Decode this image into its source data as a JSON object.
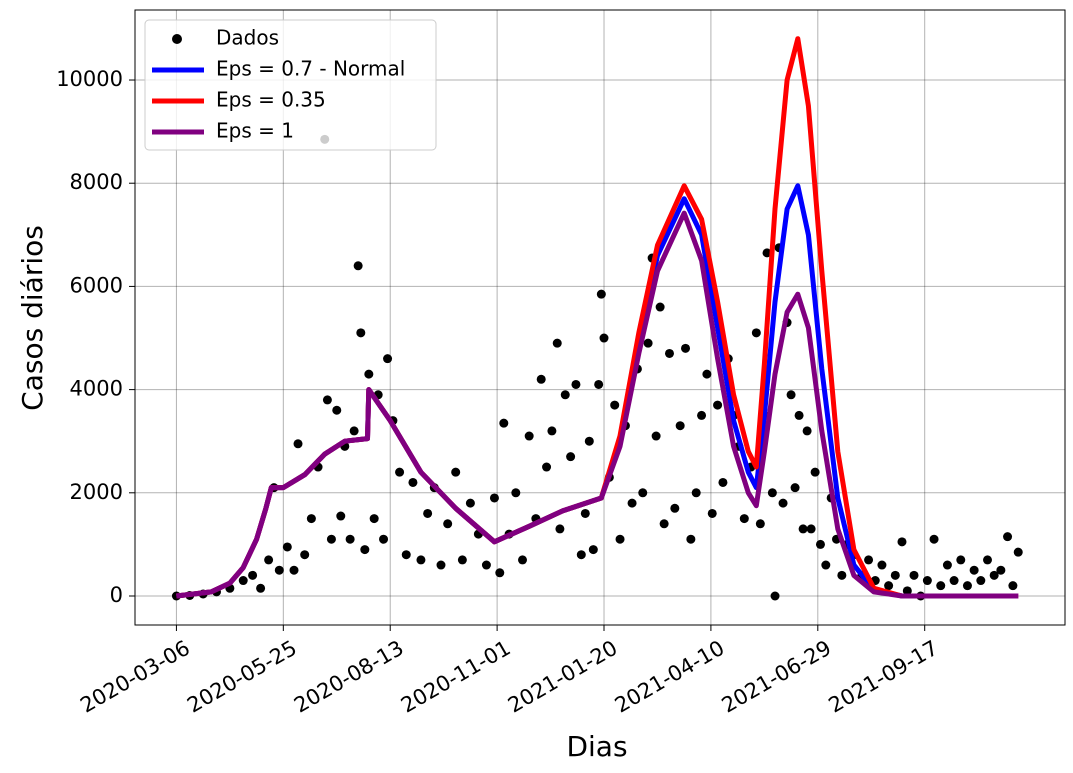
{
  "chart_data": {
    "type": "line",
    "xlabel": "Dias",
    "ylabel": "Casos diários",
    "xlim": [
      "2020-02-04",
      "2021-12-31"
    ],
    "xticks": [
      "2020-03-06",
      "2020-05-25",
      "2020-08-13",
      "2020-11-01",
      "2021-01-20",
      "2021-04-10",
      "2021-06-29",
      "2021-09-17"
    ],
    "ylim": [
      -562,
      11357
    ],
    "yticks": [
      0,
      2000,
      4000,
      6000,
      8000,
      10000
    ],
    "grid": true,
    "legend": "upper left",
    "series": [
      {
        "name": "Dados",
        "type": "scatter",
        "color": "#000000",
        "x": [
          "2020-03-06",
          "2020-03-16",
          "2020-03-26",
          "2020-04-05",
          "2020-04-15",
          "2020-04-25",
          "2020-05-02",
          "2020-05-08",
          "2020-05-14",
          "2020-05-18",
          "2020-05-22",
          "2020-05-28",
          "2020-06-02",
          "2020-06-05",
          "2020-06-10",
          "2020-06-15",
          "2020-06-20",
          "2020-06-25",
          "2020-06-27",
          "2020-06-30",
          "2020-07-04",
          "2020-07-07",
          "2020-07-10",
          "2020-07-14",
          "2020-07-17",
          "2020-07-20",
          "2020-07-22",
          "2020-07-25",
          "2020-07-28",
          "2020-08-01",
          "2020-08-04",
          "2020-08-08",
          "2020-08-11",
          "2020-08-15",
          "2020-08-20",
          "2020-08-25",
          "2020-08-30",
          "2020-09-05",
          "2020-09-10",
          "2020-09-15",
          "2020-09-20",
          "2020-09-25",
          "2020-10-01",
          "2020-10-06",
          "2020-10-12",
          "2020-10-18",
          "2020-10-24",
          "2020-10-30",
          "2020-11-03",
          "2020-11-06",
          "2020-11-10",
          "2020-11-15",
          "2020-11-20",
          "2020-11-25",
          "2020-11-30",
          "2020-12-04",
          "2020-12-08",
          "2020-12-12",
          "2020-12-16",
          "2020-12-18",
          "2020-12-22",
          "2020-12-26",
          "2020-12-30",
          "2021-01-03",
          "2021-01-06",
          "2021-01-09",
          "2021-01-12",
          "2021-01-16",
          "2021-01-18",
          "2021-01-20",
          "2021-01-24",
          "2021-01-28",
          "2021-02-01",
          "2021-02-05",
          "2021-02-10",
          "2021-02-14",
          "2021-02-18",
          "2021-02-22",
          "2021-02-25",
          "2021-02-28",
          "2021-03-03",
          "2021-03-06",
          "2021-03-10",
          "2021-03-14",
          "2021-03-18",
          "2021-03-22",
          "2021-03-26",
          "2021-03-30",
          "2021-04-03",
          "2021-04-07",
          "2021-04-11",
          "2021-04-15",
          "2021-04-19",
          "2021-04-23",
          "2021-04-27",
          "2021-05-01",
          "2021-05-05",
          "2021-05-10",
          "2021-05-14",
          "2021-05-17",
          "2021-05-20",
          "2021-05-22",
          "2021-05-26",
          "2021-05-28",
          "2021-05-31",
          "2021-06-03",
          "2021-06-06",
          "2021-06-09",
          "2021-06-12",
          "2021-06-15",
          "2021-06-18",
          "2021-06-21",
          "2021-06-24",
          "2021-06-27",
          "2021-07-01",
          "2021-07-05",
          "2021-07-09",
          "2021-07-13",
          "2021-07-17",
          "2021-07-21",
          "2021-07-26",
          "2021-08-01",
          "2021-08-06",
          "2021-08-11",
          "2021-08-16",
          "2021-08-21",
          "2021-08-26",
          "2021-08-31",
          "2021-09-04",
          "2021-09-09",
          "2021-09-14",
          "2021-09-19",
          "2021-09-24",
          "2021-09-29",
          "2021-10-04",
          "2021-10-09",
          "2021-10-14",
          "2021-10-19",
          "2021-10-24",
          "2021-10-29",
          "2021-11-03",
          "2021-11-08",
          "2021-11-13",
          "2021-11-18",
          "2021-11-22",
          "2021-11-26"
        ],
        "values": [
          0,
          10,
          40,
          80,
          150,
          300,
          400,
          150,
          700,
          2100,
          500,
          950,
          500,
          2950,
          800,
          1500,
          2500,
          8850,
          3800,
          1100,
          3600,
          1550,
          2900,
          1100,
          3200,
          6400,
          5100,
          900,
          4300,
          1500,
          3900,
          1100,
          4600,
          3400,
          2400,
          800,
          2200,
          700,
          1600,
          2100,
          600,
          1400,
          2400,
          700,
          1800,
          1200,
          600,
          1900,
          450,
          3350,
          1200,
          2000,
          700,
          3100,
          1500,
          4200,
          2500,
          3200,
          4900,
          1300,
          3900,
          2700,
          4100,
          800,
          1600,
          3000,
          900,
          4100,
          5850,
          5000,
          2300,
          3700,
          1100,
          3300,
          1800,
          4400,
          2000,
          4900,
          6550,
          3100,
          5600,
          1400,
          4700,
          1700,
          3300,
          4800,
          1100,
          2000,
          3500,
          4300,
          1600,
          3700,
          2200,
          4600,
          3500,
          2900,
          1500,
          2500,
          5100,
          1400,
          3500,
          6650,
          2000,
          0,
          6750,
          1800,
          5300,
          3900,
          2100,
          3500,
          1300,
          3200,
          1300,
          2400,
          1000,
          600,
          1900,
          1100,
          400,
          1000,
          800,
          400,
          700,
          300,
          600,
          200,
          400,
          1050,
          100,
          400,
          0,
          300,
          1100,
          200,
          600,
          300,
          700,
          200,
          500,
          300,
          700,
          400,
          500,
          1150,
          200,
          850
        ]
      },
      {
        "name": "Eps = 0.7 - Normal",
        "type": "line",
        "color": "#0000ff",
        "x": [
          "2020-03-06",
          "2020-04-01",
          "2020-04-15",
          "2020-04-25",
          "2020-05-05",
          "2020-05-12",
          "2020-05-16",
          "2020-05-25",
          "2020-06-10",
          "2020-06-25",
          "2020-07-10",
          "2020-07-27",
          "2020-07-28",
          "2020-08-13",
          "2020-09-05",
          "2020-10-01",
          "2020-10-30",
          "2020-11-25",
          "2020-12-20",
          "2021-01-18",
          "2021-02-01",
          "2021-02-15",
          "2021-03-01",
          "2021-03-21",
          "2021-04-03",
          "2021-04-15",
          "2021-04-27",
          "2021-05-08",
          "2021-05-14",
          "2021-05-20",
          "2021-05-28",
          "2021-06-06",
          "2021-06-14",
          "2021-06-22",
          "2021-07-02",
          "2021-07-14",
          "2021-07-26",
          "2021-08-10",
          "2021-08-31",
          "2021-11-26"
        ],
        "values": [
          0,
          80,
          250,
          550,
          1100,
          1700,
          2100,
          2100,
          2350,
          2750,
          3000,
          3050,
          4000,
          3400,
          2400,
          1700,
          1050,
          1350,
          1650,
          1900,
          3000,
          4900,
          6600,
          7700,
          7000,
          5200,
          3400,
          2400,
          2100,
          3500,
          5700,
          7500,
          7950,
          7000,
          4400,
          1900,
          600,
          120,
          0,
          0
        ]
      },
      {
        "name": "Eps = 0.35",
        "type": "line",
        "color": "#ff0000",
        "x": [
          "2020-03-06",
          "2020-04-01",
          "2020-04-15",
          "2020-04-25",
          "2020-05-05",
          "2020-05-12",
          "2020-05-16",
          "2020-05-25",
          "2020-06-10",
          "2020-06-25",
          "2020-07-10",
          "2020-07-27",
          "2020-07-28",
          "2020-08-13",
          "2020-09-05",
          "2020-10-01",
          "2020-10-30",
          "2020-11-25",
          "2020-12-20",
          "2021-01-18",
          "2021-02-01",
          "2021-02-15",
          "2021-03-01",
          "2021-03-21",
          "2021-04-03",
          "2021-04-15",
          "2021-04-27",
          "2021-05-08",
          "2021-05-14",
          "2021-05-20",
          "2021-05-28",
          "2021-06-06",
          "2021-06-14",
          "2021-06-22",
          "2021-07-02",
          "2021-07-14",
          "2021-07-26",
          "2021-08-10",
          "2021-08-31",
          "2021-11-26"
        ],
        "values": [
          0,
          80,
          250,
          550,
          1100,
          1700,
          2100,
          2100,
          2350,
          2750,
          3000,
          3050,
          4000,
          3400,
          2400,
          1700,
          1050,
          1350,
          1650,
          1900,
          3100,
          5100,
          6800,
          7950,
          7300,
          5700,
          3900,
          2800,
          2500,
          4500,
          7500,
          10000,
          10800,
          9500,
          6300,
          2800,
          900,
          150,
          0,
          0
        ]
      },
      {
        "name": "Eps = 1",
        "type": "line",
        "color": "#800080",
        "x": [
          "2020-03-06",
          "2020-04-01",
          "2020-04-15",
          "2020-04-25",
          "2020-05-05",
          "2020-05-12",
          "2020-05-16",
          "2020-05-25",
          "2020-06-10",
          "2020-06-25",
          "2020-07-10",
          "2020-07-27",
          "2020-07-28",
          "2020-08-13",
          "2020-09-05",
          "2020-10-01",
          "2020-10-30",
          "2020-11-25",
          "2020-12-20",
          "2021-01-18",
          "2021-02-01",
          "2021-02-15",
          "2021-03-01",
          "2021-03-21",
          "2021-04-03",
          "2021-04-15",
          "2021-04-27",
          "2021-05-08",
          "2021-05-14",
          "2021-05-20",
          "2021-05-28",
          "2021-06-06",
          "2021-06-14",
          "2021-06-22",
          "2021-07-02",
          "2021-07-14",
          "2021-07-26",
          "2021-08-10",
          "2021-08-31",
          "2021-11-26"
        ],
        "values": [
          0,
          80,
          250,
          550,
          1100,
          1700,
          2100,
          2100,
          2350,
          2750,
          3000,
          3050,
          4000,
          3400,
          2400,
          1700,
          1050,
          1350,
          1650,
          1900,
          2900,
          4700,
          6300,
          7420,
          6500,
          4600,
          2900,
          2000,
          1750,
          2800,
          4300,
          5500,
          5850,
          5200,
          3200,
          1300,
          400,
          80,
          0,
          0
        ]
      }
    ]
  }
}
